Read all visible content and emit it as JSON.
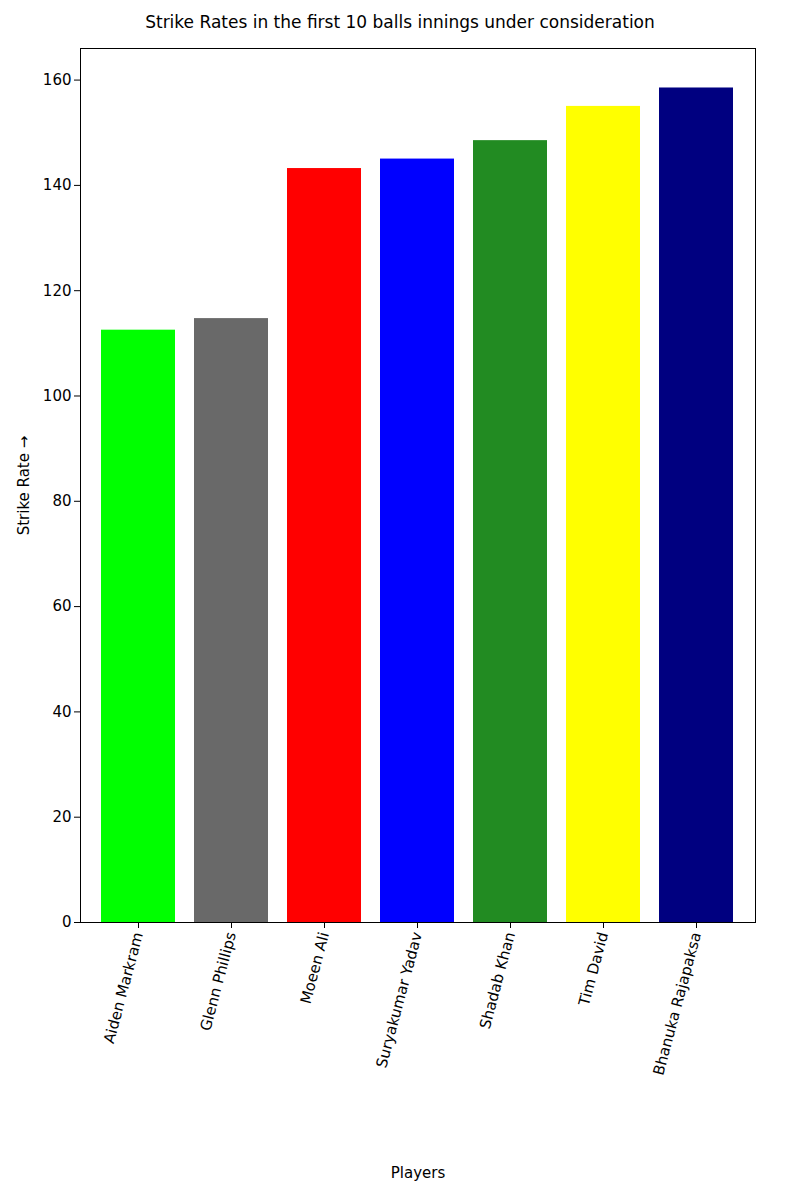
{
  "chart_data": {
    "type": "bar",
    "title": "Strike Rates in the first 10 balls innings under consideration",
    "x_label": "Players",
    "y_label": "Strike Rate",
    "categories": [
      "Aiden Markram",
      "Glenn Phillips",
      "Moeen Ali",
      "Suryakumar Yadav",
      "Shadab Khan",
      "Tim David",
      "Bhanuka Rajapaksa"
    ],
    "values": [
      112.5,
      114.7,
      143.2,
      145,
      148.5,
      155,
      158.5
    ],
    "colors": [
      "#00ff00",
      "#696969",
      "#ff0000",
      "#0000ff",
      "#228b22",
      "#ffff00",
      "#000080"
    ],
    "ylim": [
      0,
      166
    ],
    "yticks": [
      0,
      20,
      40,
      60,
      80,
      100,
      120,
      140,
      160
    ],
    "grid": false
  }
}
